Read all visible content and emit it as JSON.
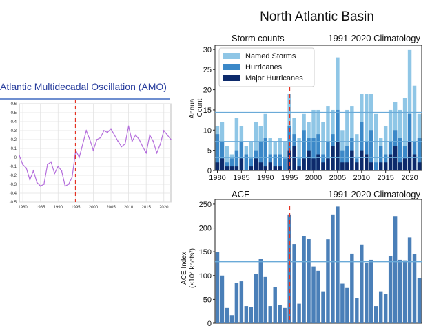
{
  "header": {
    "title": "North Atlantic Basin"
  },
  "chart_data": [
    {
      "type": "line",
      "title": "Atlantic Multidecadal Oscillation (AMO)",
      "xlim": [
        1979,
        2022
      ],
      "ylim": [
        -0.5,
        0.6
      ],
      "x_ticks": [
        "1980",
        "1985",
        "1990",
        "1995",
        "2000",
        "2005",
        "2010",
        "2015",
        "2020"
      ],
      "y_ticks": [
        "0.6",
        "0.5",
        "0.4",
        "0.3",
        "0.2",
        "0.1",
        "0",
        "-0.1",
        "-0.2",
        "-0.3",
        "-0.4",
        "-0.5"
      ],
      "grid": true,
      "line_color": "#b46ddc",
      "divider": {
        "x": 1995,
        "style": "dashed",
        "color": "#e53222"
      },
      "series": [
        {
          "x": [
            1979,
            1980,
            1981,
            1982,
            1983,
            1984,
            1985,
            1986,
            1987,
            1988,
            1989,
            1990,
            1991,
            1992,
            1993,
            1994,
            1995,
            1996,
            1997,
            1998,
            1999,
            2000,
            2001,
            2002,
            2003,
            2004,
            2005,
            2006,
            2007,
            2008,
            2009,
            2010,
            2011,
            2012,
            2013,
            2014,
            2015,
            2016,
            2017,
            2018,
            2019,
            2020,
            2021,
            2022
          ],
          "values": [
            0.02,
            -0.08,
            -0.12,
            -0.25,
            -0.15,
            -0.28,
            -0.32,
            -0.3,
            -0.08,
            -0.05,
            -0.18,
            -0.1,
            -0.15,
            -0.32,
            -0.3,
            -0.22,
            0.08,
            0.0,
            0.15,
            0.3,
            0.2,
            0.08,
            0.2,
            0.22,
            0.3,
            0.28,
            0.32,
            0.25,
            0.18,
            0.12,
            0.15,
            0.35,
            0.18,
            0.25,
            0.2,
            0.12,
            0.05,
            0.25,
            0.18,
            0.05,
            0.15,
            0.3,
            0.25,
            0.2
          ]
        }
      ]
    },
    {
      "type": "bar",
      "panel_label": "Storm counts",
      "subtitle": "1991-2020 Climatology",
      "ylabel": "Annual Count",
      "ylim": [
        0,
        31
      ],
      "y_ticks": [
        "0",
        "5",
        "10",
        "15",
        "20",
        "25",
        "30"
      ],
      "x_ticks": [
        "1980",
        "1985",
        "1990",
        "1995",
        "2000",
        "2005",
        "2010",
        "2015",
        "2020"
      ],
      "legend_position": "top-left",
      "climatology_lines": [
        14.4,
        7.2,
        3.2
      ],
      "divider": {
        "x": 1995,
        "style": "dashed",
        "color": "#e53222"
      },
      "categories": [
        1980,
        1981,
        1982,
        1983,
        1984,
        1985,
        1986,
        1987,
        1988,
        1989,
        1990,
        1991,
        1992,
        1993,
        1994,
        1995,
        1996,
        1997,
        1998,
        1999,
        2000,
        2001,
        2002,
        2003,
        2004,
        2005,
        2006,
        2007,
        2008,
        2009,
        2010,
        2011,
        2012,
        2013,
        2014,
        2015,
        2016,
        2017,
        2018,
        2019,
        2020,
        2021,
        2022
      ],
      "series": [
        {
          "name": "Named Storms",
          "color": "#8fc6e6",
          "values": [
            11,
            12,
            6,
            4,
            13,
            11,
            6,
            7,
            12,
            11,
            14,
            8,
            7,
            8,
            7,
            19,
            13,
            8,
            14,
            12,
            15,
            15,
            12,
            16,
            15,
            28,
            10,
            15,
            16,
            9,
            19,
            19,
            19,
            14,
            8,
            11,
            15,
            17,
            15,
            18,
            30,
            21,
            14
          ]
        },
        {
          "name": "Hurricanes",
          "color": "#3b88c8",
          "values": [
            9,
            7,
            2,
            3,
            5,
            7,
            4,
            3,
            5,
            7,
            8,
            4,
            4,
            4,
            3,
            11,
            9,
            3,
            10,
            8,
            8,
            9,
            4,
            7,
            9,
            15,
            5,
            6,
            8,
            3,
            12,
            7,
            10,
            2,
            6,
            4,
            7,
            10,
            8,
            6,
            14,
            7,
            8
          ]
        },
        {
          "name": "Major Hurricanes",
          "color": "#0d2a6b",
          "values": [
            2,
            3,
            1,
            1,
            1,
            3,
            0,
            1,
            3,
            2,
            1,
            2,
            1,
            1,
            0,
            5,
            6,
            1,
            3,
            5,
            3,
            4,
            2,
            3,
            6,
            7,
            2,
            2,
            5,
            2,
            5,
            4,
            2,
            0,
            2,
            2,
            4,
            6,
            2,
            3,
            7,
            4,
            2
          ]
        }
      ]
    },
    {
      "type": "bar",
      "panel_label": "ACE",
      "subtitle": "1991-2020 Climatology",
      "ylabel": "ACE Index (×10⁴ knots²)",
      "ylim": [
        0,
        260
      ],
      "y_ticks": [
        "0",
        "50",
        "100",
        "150",
        "200",
        "250"
      ],
      "climatology_line": 129,
      "divider": {
        "x": 1995,
        "style": "dashed",
        "color": "#e53222"
      },
      "bar_color": "#4a7fb8",
      "categories": [
        1980,
        1981,
        1982,
        1983,
        1984,
        1985,
        1986,
        1987,
        1988,
        1989,
        1990,
        1991,
        1992,
        1993,
        1994,
        1995,
        1996,
        1997,
        1998,
        1999,
        2000,
        2001,
        2002,
        2003,
        2004,
        2005,
        2006,
        2007,
        2008,
        2009,
        2010,
        2011,
        2012,
        2013,
        2014,
        2015,
        2016,
        2017,
        2018,
        2019,
        2020,
        2021,
        2022
      ],
      "values": [
        149,
        100,
        32,
        17,
        84,
        88,
        36,
        34,
        103,
        135,
        97,
        36,
        76,
        39,
        32,
        227,
        166,
        41,
        182,
        177,
        119,
        110,
        67,
        176,
        227,
        245,
        83,
        74,
        146,
        53,
        165,
        126,
        133,
        36,
        67,
        62,
        141,
        225,
        133,
        132,
        180,
        145,
        95
      ]
    }
  ]
}
